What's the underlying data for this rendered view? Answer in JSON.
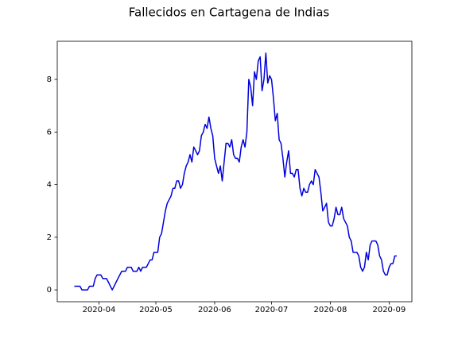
{
  "chart_data": {
    "type": "line",
    "title": "Fallecidos en Cartagena de Indias",
    "x": [
      "2020-03-19",
      "2020-03-20",
      "2020-03-21",
      "2020-03-22",
      "2020-03-23",
      "2020-03-24",
      "2020-03-25",
      "2020-03-26",
      "2020-03-27",
      "2020-03-28",
      "2020-03-29",
      "2020-03-30",
      "2020-03-31",
      "2020-04-01",
      "2020-04-02",
      "2020-04-03",
      "2020-04-04",
      "2020-04-05",
      "2020-04-06",
      "2020-04-07",
      "2020-04-08",
      "2020-04-09",
      "2020-04-10",
      "2020-04-11",
      "2020-04-12",
      "2020-04-13",
      "2020-04-14",
      "2020-04-15",
      "2020-04-16",
      "2020-04-17",
      "2020-04-18",
      "2020-04-19",
      "2020-04-20",
      "2020-04-21",
      "2020-04-22",
      "2020-04-23",
      "2020-04-24",
      "2020-04-25",
      "2020-04-26",
      "2020-04-27",
      "2020-04-28",
      "2020-04-29",
      "2020-04-30",
      "2020-05-01",
      "2020-05-02",
      "2020-05-03",
      "2020-05-04",
      "2020-05-05",
      "2020-05-06",
      "2020-05-07",
      "2020-05-08",
      "2020-05-09",
      "2020-05-10",
      "2020-05-11",
      "2020-05-12",
      "2020-05-13",
      "2020-05-14",
      "2020-05-15",
      "2020-05-16",
      "2020-05-17",
      "2020-05-18",
      "2020-05-19",
      "2020-05-20",
      "2020-05-21",
      "2020-05-22",
      "2020-05-23",
      "2020-05-24",
      "2020-05-25",
      "2020-05-26",
      "2020-05-27",
      "2020-05-28",
      "2020-05-29",
      "2020-05-30",
      "2020-05-31",
      "2020-06-01",
      "2020-06-02",
      "2020-06-03",
      "2020-06-04",
      "2020-06-05",
      "2020-06-06",
      "2020-06-07",
      "2020-06-08",
      "2020-06-09",
      "2020-06-10",
      "2020-06-11",
      "2020-06-12",
      "2020-06-13",
      "2020-06-14",
      "2020-06-15",
      "2020-06-16",
      "2020-06-17",
      "2020-06-18",
      "2020-06-19",
      "2020-06-20",
      "2020-06-21",
      "2020-06-22",
      "2020-06-23",
      "2020-06-24",
      "2020-06-25",
      "2020-06-26",
      "2020-06-27",
      "2020-06-28",
      "2020-06-29",
      "2020-06-30",
      "2020-07-01",
      "2020-07-02",
      "2020-07-03",
      "2020-07-04",
      "2020-07-05",
      "2020-07-06",
      "2020-07-07",
      "2020-07-08",
      "2020-07-09",
      "2020-07-10",
      "2020-07-11",
      "2020-07-12",
      "2020-07-13",
      "2020-07-14",
      "2020-07-15",
      "2020-07-16",
      "2020-07-17",
      "2020-07-18",
      "2020-07-19",
      "2020-07-20",
      "2020-07-21",
      "2020-07-22",
      "2020-07-23",
      "2020-07-24",
      "2020-07-25",
      "2020-07-26",
      "2020-07-27",
      "2020-07-28",
      "2020-07-29",
      "2020-07-30",
      "2020-07-31",
      "2020-08-01",
      "2020-08-02",
      "2020-08-03",
      "2020-08-04",
      "2020-08-05",
      "2020-08-06",
      "2020-08-07",
      "2020-08-08",
      "2020-08-09",
      "2020-08-10",
      "2020-08-11",
      "2020-08-12",
      "2020-08-13",
      "2020-08-14",
      "2020-08-15",
      "2020-08-16",
      "2020-08-17",
      "2020-08-18",
      "2020-08-19",
      "2020-08-20",
      "2020-08-21",
      "2020-08-22",
      "2020-08-23",
      "2020-08-24",
      "2020-08-25",
      "2020-08-26",
      "2020-08-27",
      "2020-08-28",
      "2020-08-29",
      "2020-08-30",
      "2020-08-31",
      "2020-09-01",
      "2020-09-02",
      "2020-09-03",
      "2020-09-04",
      "2020-09-05"
    ],
    "series": [
      {
        "color": "#0000dd",
        "values": [
          0.14,
          0.14,
          0.14,
          0.14,
          0,
          0,
          0,
          0,
          0.14,
          0.14,
          0.14,
          0.43,
          0.57,
          0.57,
          0.57,
          0.43,
          0.43,
          0.43,
          0.29,
          0.14,
          0,
          0.14,
          0.29,
          0.43,
          0.57,
          0.71,
          0.71,
          0.71,
          0.86,
          0.86,
          0.86,
          0.71,
          0.71,
          0.71,
          0.86,
          0.71,
          0.86,
          0.86,
          0.86,
          1.0,
          1.14,
          1.14,
          1.43,
          1.43,
          1.43,
          2.0,
          2.14,
          2.57,
          3.0,
          3.29,
          3.43,
          3.57,
          3.86,
          3.86,
          4.14,
          4.14,
          3.86,
          4.0,
          4.43,
          4.71,
          4.86,
          5.14,
          4.86,
          5.43,
          5.29,
          5.14,
          5.29,
          5.86,
          6.0,
          6.29,
          6.14,
          6.57,
          6.14,
          5.86,
          5.0,
          4.71,
          4.43,
          4.71,
          4.14,
          4.86,
          5.57,
          5.57,
          5.43,
          5.71,
          5.14,
          5.0,
          5.0,
          4.86,
          5.43,
          5.71,
          5.43,
          6.0,
          8.0,
          7.71,
          7.0,
          8.29,
          8.0,
          8.71,
          8.86,
          7.57,
          8.0,
          9.0,
          7.86,
          8.14,
          8.0,
          7.29,
          6.43,
          6.71,
          5.71,
          5.57,
          5.0,
          4.29,
          4.86,
          5.29,
          4.43,
          4.43,
          4.29,
          4.57,
          4.57,
          3.86,
          3.57,
          3.86,
          3.71,
          3.71,
          4.0,
          4.14,
          4.0,
          4.57,
          4.43,
          4.29,
          3.71,
          3.0,
          3.14,
          3.29,
          2.57,
          2.43,
          2.43,
          2.71,
          3.14,
          2.86,
          2.86,
          3.14,
          2.71,
          2.57,
          2.43,
          2.0,
          1.86,
          1.43,
          1.43,
          1.43,
          1.29,
          0.86,
          0.71,
          0.86,
          1.43,
          1.14,
          1.71,
          1.86,
          1.86,
          1.86,
          1.71,
          1.29,
          1.14,
          0.71,
          0.57,
          0.57,
          0.86,
          1.0,
          1.0,
          1.29,
          1.29
        ]
      }
    ],
    "xlim": [
      "2020-03-10",
      "2020-09-13"
    ],
    "xticks": [
      {
        "value": "2020-04-01",
        "label": "2020-04"
      },
      {
        "value": "2020-05-01",
        "label": "2020-05"
      },
      {
        "value": "2020-06-01",
        "label": "2020-06"
      },
      {
        "value": "2020-07-01",
        "label": "2020-07"
      },
      {
        "value": "2020-08-01",
        "label": "2020-08"
      },
      {
        "value": "2020-09-01",
        "label": "2020-09"
      }
    ],
    "ylim": [
      -0.45,
      9.45
    ],
    "yticks": [
      0,
      2,
      4,
      6,
      8
    ]
  }
}
